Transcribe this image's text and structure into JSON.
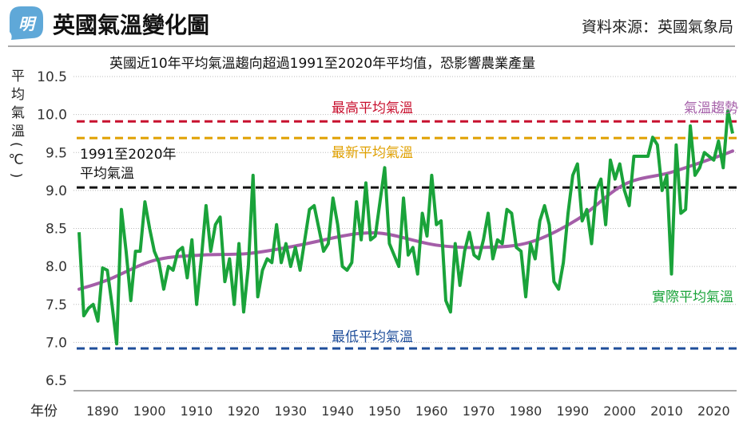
{
  "header": {
    "logo_char": "明",
    "title": "英國氣溫變化圖",
    "source": "資料來源：英國氣象局"
  },
  "colors": {
    "actual": "#1aa33a",
    "trend": "#a45ea8",
    "max": "#c8102e",
    "latest": "#e0a000",
    "baseline": "#111111",
    "min": "#1f4e9a",
    "logo": "#5fa8d8"
  },
  "chart_data": {
    "type": "line",
    "title": "英國近10年平均氣溫趨向超過1991至2020年平均值，恐影響農業產量",
    "xlabel": "年份",
    "ylabel": "平均氣溫(℃)",
    "xlim": [
      1884,
      2023
    ],
    "ylim": [
      6.5,
      10.5
    ],
    "yticks": [
      "6.5",
      "7.0",
      "7.5",
      "8.0",
      "8.5",
      "9.0",
      "9.5",
      "10.0",
      "10.5"
    ],
    "xticks": [
      "1890",
      "1900",
      "1910",
      "1920",
      "1930",
      "1940",
      "1950",
      "1960",
      "1970",
      "1980",
      "1990",
      "2000",
      "2010",
      "2020"
    ],
    "grid": true,
    "series": [
      {
        "name": "實際平均氣溫",
        "x_start": 1884,
        "values": [
          8.45,
          7.35,
          7.45,
          7.5,
          7.28,
          7.98,
          7.95,
          7.5,
          6.98,
          8.75,
          8.2,
          7.55,
          8.2,
          8.2,
          8.85,
          8.5,
          8.2,
          8.05,
          7.7,
          8.0,
          7.95,
          8.2,
          8.25,
          7.85,
          8.35,
          7.5,
          8.1,
          8.8,
          8.2,
          8.55,
          8.65,
          7.8,
          8.1,
          7.5,
          8.3,
          7.4,
          8.0,
          9.2,
          7.6,
          7.95,
          8.1,
          8.05,
          8.55,
          8.05,
          8.3,
          8.0,
          8.25,
          7.95,
          8.35,
          8.75,
          8.8,
          8.5,
          8.2,
          8.3,
          8.9,
          8.55,
          8.0,
          7.95,
          8.05,
          8.85,
          8.35,
          9.1,
          8.35,
          8.4,
          8.85,
          9.3,
          8.3,
          8.15,
          8.0,
          8.9,
          8.15,
          8.25,
          7.9,
          8.7,
          8.4,
          9.2,
          8.55,
          8.6,
          7.55,
          7.4,
          8.3,
          7.75,
          8.2,
          8.45,
          8.15,
          8.1,
          8.35,
          8.7,
          8.1,
          8.35,
          8.3,
          8.75,
          8.7,
          8.25,
          8.2,
          7.6,
          8.3,
          8.1,
          8.6,
          8.8,
          8.55,
          7.8,
          7.7,
          8.05,
          8.7,
          9.2,
          9.35,
          8.6,
          8.75,
          8.3,
          9.0,
          9.15,
          8.55,
          9.4,
          9.15,
          9.35,
          9.0,
          8.8,
          9.45,
          9.45,
          9.45,
          9.45,
          9.7,
          9.6,
          9.0,
          9.2,
          7.9,
          9.6,
          8.7,
          8.75,
          9.85,
          9.2,
          9.3,
          9.5,
          9.45,
          9.4,
          9.65,
          9.3,
          10.05,
          9.75
        ]
      },
      {
        "name": "氣溫趨勢",
        "x": [
          1884,
          1890,
          1900,
          1910,
          1920,
          1930,
          1940,
          1945,
          1950,
          1960,
          1970,
          1980,
          1990,
          2000,
          2010,
          2020,
          2023
        ],
        "values": [
          7.7,
          7.82,
          8.08,
          8.15,
          8.17,
          8.27,
          8.4,
          8.44,
          8.42,
          8.28,
          8.25,
          8.32,
          8.62,
          9.08,
          9.24,
          9.45,
          9.52
        ]
      }
    ],
    "reference_lines": [
      {
        "label": "最高平均氣溫",
        "value": 9.91
      },
      {
        "label": "最新平均氣溫",
        "value": 9.69
      },
      {
        "label": "1991至2020年",
        "label2": "平均氣溫",
        "value": 9.04
      },
      {
        "label": "最低平均氣溫",
        "value": 6.92
      }
    ]
  }
}
